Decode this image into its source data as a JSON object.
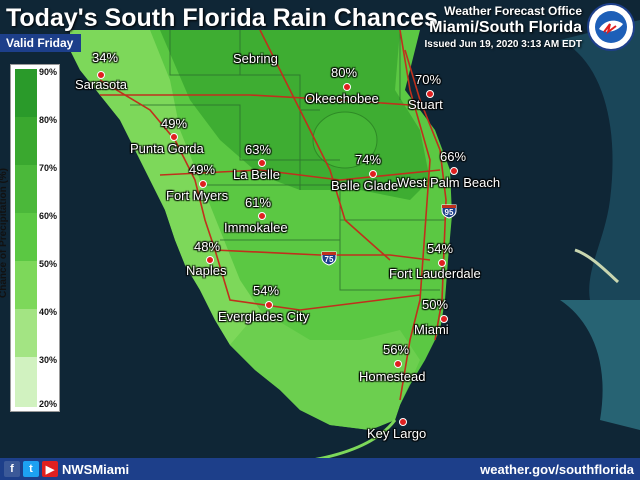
{
  "header": {
    "title": "Today's South Florida Rain Chances",
    "valid": "Valid Friday",
    "office_line1": "Weather Forecast Office",
    "office_line2": "Miami/South Florida",
    "issued": "Issued Jun 19, 2020 3:13 AM EDT"
  },
  "legend": {
    "title": "Chance of Precipitation (%)",
    "ticks": [
      "90%",
      "80%",
      "70%",
      "60%",
      "50%",
      "40%",
      "30%",
      "20%"
    ]
  },
  "colors": {
    "water": "#0f2636",
    "land_low": "#7dd85a",
    "land_mid": "#5bc843",
    "land_high": "#3aa82f",
    "roads": "#c0301c",
    "footer": "#1d3f8a"
  },
  "cities": [
    {
      "name": "Sarasota",
      "pct": "34%"
    },
    {
      "name": "Sebring",
      "pct": ""
    },
    {
      "name": "Okeechobee",
      "pct": "80%"
    },
    {
      "name": "Stuart",
      "pct": "70%"
    },
    {
      "name": "Punta Gorda",
      "pct": "49%"
    },
    {
      "name": "La Belle",
      "pct": "63%"
    },
    {
      "name": "Belle Glade",
      "pct": "74%"
    },
    {
      "name": "West Palm Beach",
      "pct": "66%"
    },
    {
      "name": "Fort Myers",
      "pct": "49%"
    },
    {
      "name": "Immokalee",
      "pct": "61%"
    },
    {
      "name": "Naples",
      "pct": "48%"
    },
    {
      "name": "Fort Lauderdale",
      "pct": "54%"
    },
    {
      "name": "Everglades City",
      "pct": "54%"
    },
    {
      "name": "Miami",
      "pct": "50%"
    },
    {
      "name": "Homestead",
      "pct": "56%"
    },
    {
      "name": "Key Largo",
      "pct": ""
    }
  ],
  "highways": {
    "i75": "75",
    "i95": "95"
  },
  "footer": {
    "handle": "NWSMiami",
    "site": "weather.gov/southflorida",
    "social_icons": [
      "facebook-icon",
      "twitter-icon",
      "youtube-icon"
    ]
  }
}
